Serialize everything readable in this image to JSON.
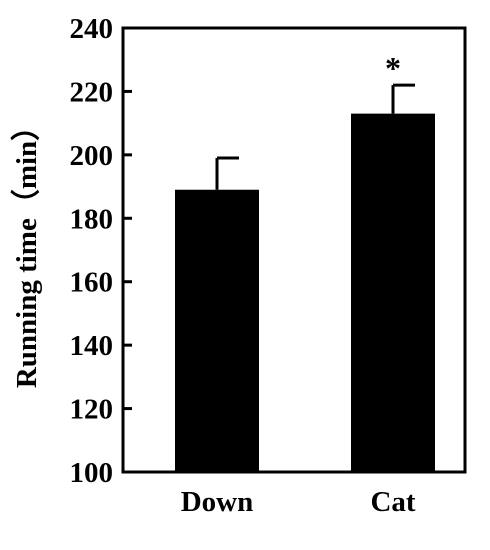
{
  "chart_data": {
    "type": "bar",
    "title": "",
    "xlabel": "",
    "ylabel": "Running time（min）",
    "categories": [
      "Down",
      "Cat"
    ],
    "values": [
      189,
      213
    ],
    "error_upper": [
      199,
      222
    ],
    "ylim": [
      100,
      240
    ],
    "yticks": [
      100,
      120,
      140,
      160,
      180,
      200,
      220,
      240
    ],
    "ytick_labels": [
      "100",
      "120",
      "140",
      "160",
      "180",
      "200",
      "220",
      "240"
    ],
    "annotations": [
      {
        "category": "Cat",
        "text": "*"
      }
    ],
    "grid": false,
    "legend": "none",
    "colors": {
      "bar": "#000000",
      "axis": "#000000",
      "background": "#ffffff"
    }
  }
}
